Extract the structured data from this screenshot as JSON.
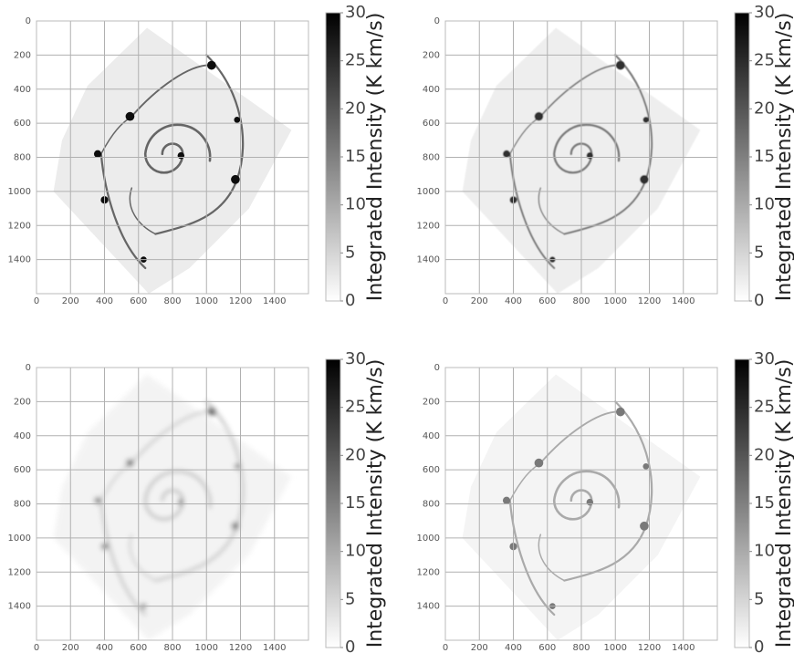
{
  "chart_data": [
    {
      "type": "image",
      "cmap": "gray_r",
      "smoothing": 1.2,
      "opacity": 1,
      "xlim": [
        0,
        1600
      ],
      "ylim": [
        1600,
        0
      ],
      "xticks": [
        0,
        200,
        400,
        600,
        800,
        1000,
        1200,
        1400
      ],
      "yticks": [
        0,
        200,
        400,
        600,
        800,
        1000,
        1200,
        1400
      ],
      "grid": true,
      "colorbar_label": "Integrated Intensity (K km/s)",
      "clim": [
        0,
        30
      ],
      "cticks": [
        0,
        5,
        10,
        15,
        20,
        25,
        30
      ]
    },
    {
      "type": "image",
      "cmap": "gray_r",
      "smoothing": 3,
      "opacity": 0.85,
      "xlim": [
        0,
        1600
      ],
      "ylim": [
        1600,
        0
      ],
      "xticks": [
        0,
        200,
        400,
        600,
        800,
        1000,
        1200,
        1400
      ],
      "yticks": [
        0,
        200,
        400,
        600,
        800,
        1000,
        1200,
        1400
      ],
      "grid": true,
      "colorbar_label": "Integrated Intensity (K km/s)",
      "clim": [
        0,
        30
      ],
      "cticks": [
        0,
        5,
        10,
        15,
        20,
        25,
        30
      ]
    },
    {
      "type": "image",
      "cmap": "gray_r",
      "smoothing": 14,
      "opacity": 0.6,
      "xlim": [
        0,
        1600
      ],
      "ylim": [
        1600,
        0
      ],
      "xticks": [
        0,
        200,
        400,
        600,
        800,
        1000,
        1200,
        1400
      ],
      "yticks": [
        0,
        200,
        400,
        600,
        800,
        1000,
        1200,
        1400
      ],
      "grid": true,
      "colorbar_label": "Integrated Intensity (K km/s)",
      "clim": [
        0,
        30
      ],
      "cticks": [
        0,
        5,
        10,
        15,
        20,
        25,
        30
      ]
    },
    {
      "type": "image",
      "cmap": "gray_r",
      "smoothing": 0.8,
      "opacity": 0.55,
      "xlim": [
        0,
        1600
      ],
      "ylim": [
        1600,
        0
      ],
      "xticks": [
        0,
        200,
        400,
        600,
        800,
        1000,
        1200,
        1400
      ],
      "yticks": [
        0,
        200,
        400,
        600,
        800,
        1000,
        1200,
        1400
      ],
      "grid": true,
      "colorbar_label": "Integrated Intensity (K km/s)",
      "clim": [
        0,
        30
      ],
      "cticks": [
        0,
        5,
        10,
        15,
        20,
        25,
        30
      ]
    }
  ]
}
